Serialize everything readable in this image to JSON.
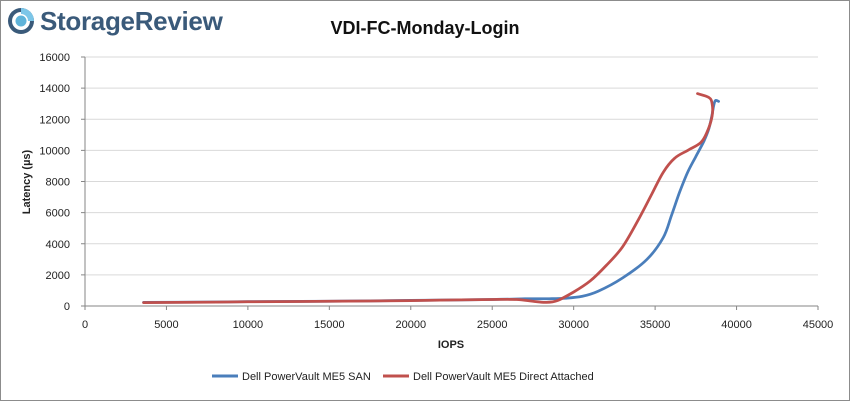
{
  "brand": {
    "name": "StorageReview",
    "logo_color": "#3a5a7a"
  },
  "chart_data": {
    "type": "line",
    "title": "VDI-FC-Monday-Login",
    "xlabel": "IOPS",
    "ylabel": "Latency (µs)",
    "xlim": [
      0,
      45000
    ],
    "ylim": [
      0,
      16000
    ],
    "xticks": [
      0,
      5000,
      10000,
      15000,
      20000,
      25000,
      30000,
      35000,
      40000,
      45000
    ],
    "yticks": [
      0,
      2000,
      4000,
      6000,
      8000,
      10000,
      12000,
      14000,
      16000
    ],
    "xtick_labels": [
      "0",
      "5000",
      "10000",
      "15000",
      "20000",
      "25000",
      "30000",
      "35000",
      "40000",
      "45000"
    ],
    "ytick_labels": [
      "0",
      "2000",
      "4000",
      "6000",
      "8000",
      "10000",
      "12000",
      "14000",
      "16000"
    ],
    "grid": "horizontal",
    "legend": "bottom",
    "series": [
      {
        "name": "Dell PowerVault ME5 SAN",
        "color": "#4a7ebb",
        "points": [
          [
            3600,
            230
          ],
          [
            7000,
            250
          ],
          [
            10000,
            280
          ],
          [
            15000,
            310
          ],
          [
            20000,
            360
          ],
          [
            25000,
            420
          ],
          [
            27000,
            460
          ],
          [
            28500,
            470
          ],
          [
            29500,
            500
          ],
          [
            30500,
            620
          ],
          [
            31500,
            950
          ],
          [
            33000,
            1800
          ],
          [
            34500,
            3000
          ],
          [
            35500,
            4400
          ],
          [
            36000,
            5800
          ],
          [
            36500,
            7300
          ],
          [
            37000,
            8600
          ],
          [
            37500,
            9600
          ],
          [
            38000,
            10600
          ],
          [
            38300,
            11400
          ],
          [
            38500,
            12300
          ],
          [
            38600,
            12900
          ],
          [
            38700,
            13200
          ],
          [
            38900,
            13150
          ]
        ]
      },
      {
        "name": "Dell PowerVault ME5 Direct Attached",
        "color": "#c0504d",
        "points": [
          [
            3600,
            220
          ],
          [
            7000,
            240
          ],
          [
            10000,
            270
          ],
          [
            15000,
            300
          ],
          [
            20000,
            350
          ],
          [
            25000,
            420
          ],
          [
            26500,
            420
          ],
          [
            27500,
            300
          ],
          [
            28300,
            230
          ],
          [
            29000,
            350
          ],
          [
            30000,
            900
          ],
          [
            31000,
            1600
          ],
          [
            32000,
            2600
          ],
          [
            33000,
            3800
          ],
          [
            34000,
            5600
          ],
          [
            34800,
            7200
          ],
          [
            35500,
            8600
          ],
          [
            36200,
            9500
          ],
          [
            37000,
            10000
          ],
          [
            37800,
            10500
          ],
          [
            38200,
            11200
          ],
          [
            38500,
            12200
          ],
          [
            38500,
            13000
          ],
          [
            38300,
            13400
          ],
          [
            37600,
            13650
          ]
        ]
      }
    ]
  }
}
